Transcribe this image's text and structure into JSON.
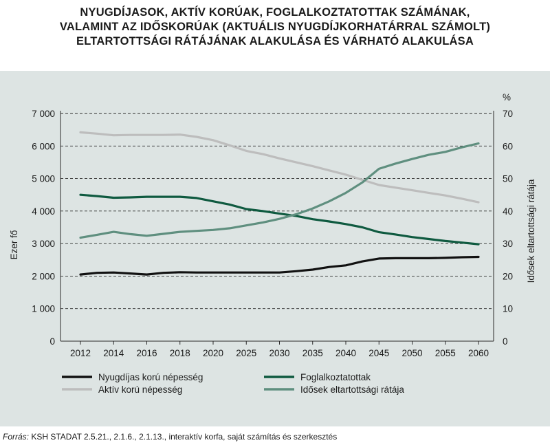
{
  "chart_data": {
    "type": "line",
    "title_lines": [
      "NYUGDÍJASOK, AKTÍV KORÚAK, FOGLALKOZTATOTTAK SZÁMÁNAK,",
      "VALAMINT AZ IDŐSKORÚAK (AKTUÁLIS NYUGDÍJKORHATÁRRAL SZÁMOLT)",
      "ELTARTOTTSÁGI RÁTÁJÁNAK ALAKULÁSA ÉS VÁRHATÓ ALAKULÁSA"
    ],
    "ylabel": "Ezer fő",
    "y2label": "Idősek eltartottsági rátája",
    "y2unit": "%",
    "ylim": [
      0,
      7000
    ],
    "y2lim": [
      0,
      70
    ],
    "yticks": [
      "0",
      "1 000",
      "2 000",
      "3 000",
      "4 000",
      "5 000",
      "6 000",
      "7 000"
    ],
    "y2ticks": [
      "0",
      "10",
      "20",
      "30",
      "40",
      "50",
      "60",
      "70"
    ],
    "categories": [
      "2012",
      "2014",
      "2016",
      "2018",
      "2020",
      "2025",
      "2030",
      "2035",
      "2040",
      "2045",
      "2050",
      "2055",
      "2060"
    ],
    "grid": "horizontal dashed",
    "legend_position": "bottom",
    "series": [
      {
        "name": "Nyugdíjas korú népesség",
        "axis": "left",
        "color": "#111111",
        "x": [
          0,
          0.5,
          1,
          1.5,
          2,
          2.5,
          3,
          3.5,
          4,
          4.5,
          5,
          5.5,
          6,
          6.5,
          7,
          7.5,
          8,
          8.5,
          9,
          9.5,
          10,
          10.5,
          11,
          11.5,
          12
        ],
        "values": [
          2050,
          2100,
          2110,
          2080,
          2050,
          2100,
          2120,
          2110,
          2110,
          2110,
          2110,
          2110,
          2110,
          2150,
          2200,
          2280,
          2330,
          2450,
          2540,
          2550,
          2550,
          2550,
          2560,
          2580,
          2590
        ]
      },
      {
        "name": "Aktív korú népesség",
        "axis": "left",
        "color": "#bdbdbd",
        "x": [
          0,
          0.5,
          1,
          1.5,
          2,
          2.5,
          3,
          3.5,
          4,
          4.5,
          5,
          5.5,
          6,
          6.5,
          7,
          7.5,
          8,
          8.5,
          9,
          9.5,
          10,
          10.5,
          11,
          11.5,
          12
        ],
        "values": [
          6420,
          6380,
          6330,
          6340,
          6340,
          6340,
          6350,
          6280,
          6180,
          6020,
          5850,
          5750,
          5620,
          5500,
          5380,
          5250,
          5120,
          4960,
          4800,
          4720,
          4640,
          4560,
          4480,
          4380,
          4270
        ]
      },
      {
        "name": "Foglalkoztatottak",
        "axis": "left",
        "color": "#0f5a40",
        "x": [
          0,
          0.5,
          1,
          1.5,
          2,
          2.5,
          3,
          3.5,
          4,
          4.5,
          5,
          5.5,
          6,
          6.5,
          7,
          7.5,
          8,
          8.5,
          9,
          9.5,
          10,
          10.5,
          11,
          11.5,
          12
        ],
        "values": [
          4500,
          4460,
          4410,
          4420,
          4440,
          4440,
          4440,
          4400,
          4300,
          4200,
          4060,
          4000,
          3920,
          3850,
          3750,
          3680,
          3600,
          3500,
          3350,
          3280,
          3200,
          3140,
          3080,
          3030,
          2980
        ]
      },
      {
        "name": "Idősek eltartottsági rátája",
        "axis": "right",
        "color": "#5f8f7f",
        "x": [
          0,
          0.5,
          1,
          1.5,
          2,
          2.5,
          3,
          3.5,
          4,
          4.5,
          5,
          5.5,
          6,
          6.5,
          7,
          7.5,
          8,
          8.5,
          9,
          9.5,
          10,
          10.5,
          11,
          11.5,
          12
        ],
        "values": [
          31.8,
          32.7,
          33.6,
          32.9,
          32.4,
          33.0,
          33.6,
          33.9,
          34.2,
          34.7,
          35.6,
          36.5,
          37.6,
          39.0,
          40.8,
          43.0,
          45.6,
          48.8,
          53.0,
          54.6,
          56.0,
          57.3,
          58.2,
          59.6,
          60.8
        ]
      }
    ]
  },
  "source": {
    "label": "Forrás:",
    "text": " KSH STADAT 2.5.21., 2.1.6., 2.1.13., interaktív korfa, saját számítás és szerkesztés"
  }
}
